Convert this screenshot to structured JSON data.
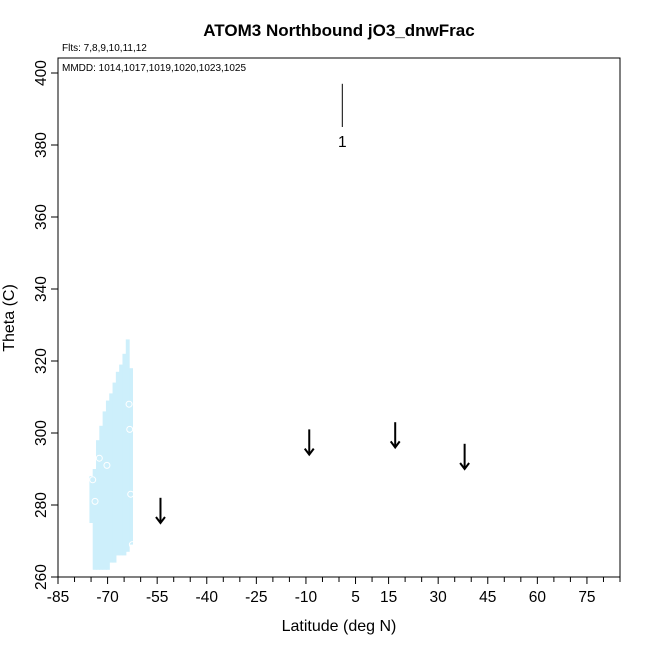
{
  "chart_data": {
    "type": "scatter",
    "title": "ATOM3 Northbound jO3_dnwFrac",
    "flights_label": "Flts: 7,8,9,10,11,12",
    "dates_label": "MMDD: 1014,1017,1019,1020,1023,1025",
    "xlabel": "Latitude (deg N)",
    "ylabel": "Theta (C)",
    "xlim": [
      -85,
      85
    ],
    "ylim": [
      260,
      400
    ],
    "xticks": [
      -85,
      -70,
      -55,
      -40,
      -25,
      -10,
      5,
      15,
      30,
      45,
      60,
      75
    ],
    "yticks": [
      260,
      280,
      300,
      320,
      340,
      360,
      380,
      400
    ],
    "colors": {
      "shading": "#cdeffb",
      "marker": "#000000",
      "frame": "#000000"
    },
    "shaded_region": [
      {
        "x": -75,
        "y0": 275,
        "y1": 288
      },
      {
        "x": -74,
        "y0": 262,
        "y1": 290
      },
      {
        "x": -73,
        "y0": 262,
        "y1": 298
      },
      {
        "x": -72,
        "y0": 262,
        "y1": 302
      },
      {
        "x": -71,
        "y0": 262,
        "y1": 306
      },
      {
        "x": -70,
        "y0": 262,
        "y1": 309
      },
      {
        "x": -69,
        "y0": 264,
        "y1": 311
      },
      {
        "x": -68,
        "y0": 264,
        "y1": 314
      },
      {
        "x": -67,
        "y0": 266,
        "y1": 317
      },
      {
        "x": -66,
        "y0": 266,
        "y1": 319
      },
      {
        "x": -65,
        "y0": 266,
        "y1": 322
      },
      {
        "x": -64,
        "y0": 267,
        "y1": 326
      },
      {
        "x": -63,
        "y0": 269,
        "y1": 318
      }
    ],
    "open_circles": [
      {
        "x": -74.5,
        "y": 287
      },
      {
        "x": -73.8,
        "y": 281
      },
      {
        "x": -72.5,
        "y": 293
      },
      {
        "x": -70.2,
        "y": 291
      },
      {
        "x": -63.5,
        "y": 308
      },
      {
        "x": -63.3,
        "y": 301
      },
      {
        "x": -63,
        "y": 283
      },
      {
        "x": -62.5,
        "y": 269
      }
    ],
    "profile_line": {
      "x": 1,
      "y0": 385,
      "y1": 397,
      "label": "1"
    },
    "arrows": [
      {
        "x": -54,
        "y_top": 282,
        "y_bottom": 275
      },
      {
        "x": -9,
        "y_top": 301,
        "y_bottom": 294
      },
      {
        "x": 17,
        "y_top": 303,
        "y_bottom": 296
      },
      {
        "x": 38,
        "y_top": 297,
        "y_bottom": 290
      }
    ]
  }
}
